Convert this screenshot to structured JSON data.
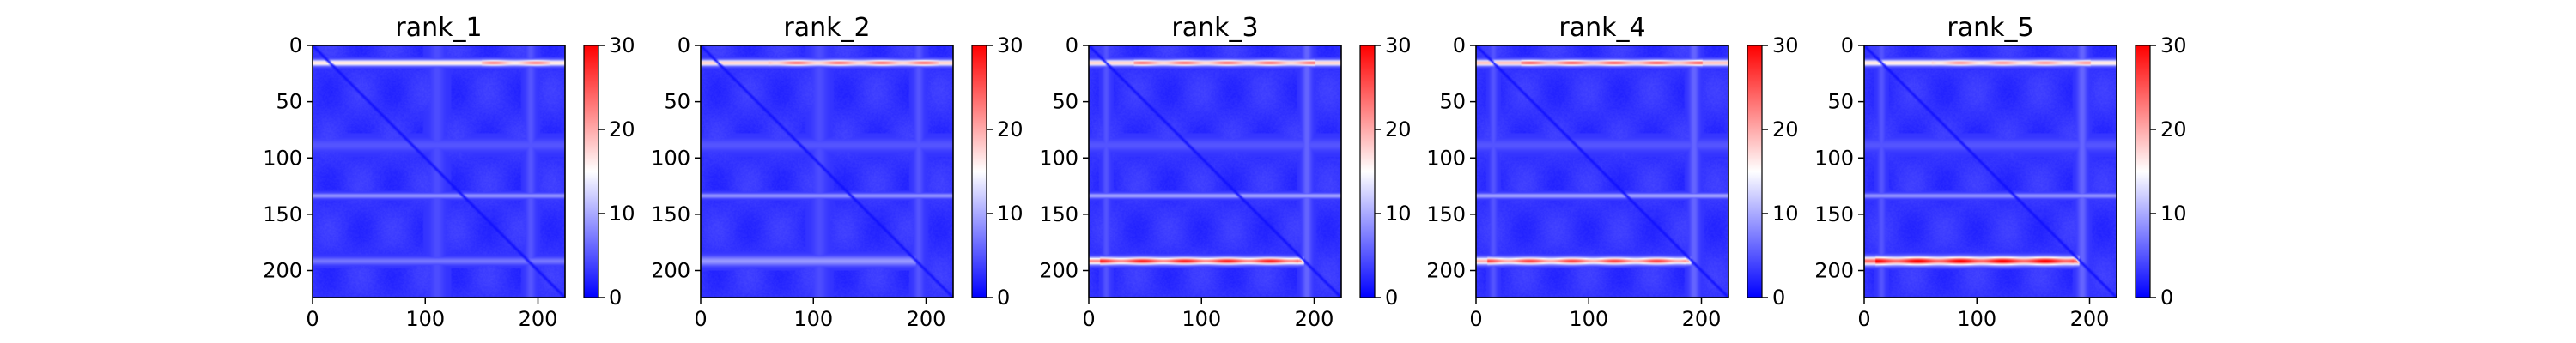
{
  "figure": {
    "background": "#ffffff"
  },
  "colormap": {
    "low": "#0000ff",
    "mid": "#ffffff",
    "high": "#ff0000"
  },
  "chart_data": [
    {
      "type": "heatmap",
      "title": "rank_1",
      "xlim": [
        0,
        224
      ],
      "ylim": [
        224,
        0
      ],
      "x_ticks": [
        0,
        100,
        200
      ],
      "y_ticks": [
        0,
        50,
        100,
        150,
        200
      ],
      "colorbar": {
        "range": [
          0,
          30
        ],
        "ticks": [
          0,
          10,
          20,
          30
        ]
      },
      "grid_size": 224,
      "features": {
        "base_value": 3,
        "diagonal_value": 1,
        "horizontal_bands": [
          {
            "center": 15,
            "width": 2.5,
            "value": 18,
            "x_range": [
              0,
              224
            ],
            "peak_x": [
              150,
              210
            ],
            "peak_value": 23
          },
          {
            "center": 133,
            "width": 2,
            "value": 9,
            "x_range": [
              0,
              224
            ]
          },
          {
            "center": 191,
            "width": 3,
            "value": 7,
            "x_range": [
              0,
              224
            ]
          },
          {
            "center": 88,
            "width": 5,
            "value": 5,
            "x_range": [
              0,
              224
            ]
          }
        ],
        "vertical_bands": [
          {
            "center": 193,
            "width": 4,
            "value": 5
          },
          {
            "center": 110,
            "width": 6,
            "value": 4.5
          }
        ]
      }
    },
    {
      "type": "heatmap",
      "title": "rank_2",
      "xlim": [
        0,
        224
      ],
      "ylim": [
        224,
        0
      ],
      "x_ticks": [
        0,
        100,
        200
      ],
      "y_ticks": [
        0,
        50,
        100,
        150,
        200
      ],
      "colorbar": {
        "range": [
          0,
          30
        ],
        "ticks": [
          0,
          10,
          20,
          30
        ]
      },
      "grid_size": 224,
      "features": {
        "base_value": 3,
        "diagonal_value": 1,
        "horizontal_bands": [
          {
            "center": 15,
            "width": 2.5,
            "value": 19,
            "x_range": [
              0,
              224
            ],
            "peak_x": [
              60,
              210
            ],
            "peak_value": 24
          },
          {
            "center": 133,
            "width": 2,
            "value": 9,
            "x_range": [
              0,
              224
            ]
          },
          {
            "center": 191,
            "width": 4,
            "value": 9,
            "x_range": [
              0,
              190
            ]
          },
          {
            "center": 88,
            "width": 5,
            "value": 5,
            "x_range": [
              0,
              224
            ]
          }
        ],
        "vertical_bands": [
          {
            "center": 193,
            "width": 4,
            "value": 5
          },
          {
            "center": 105,
            "width": 6,
            "value": 4.5
          }
        ]
      }
    },
    {
      "type": "heatmap",
      "title": "rank_3",
      "xlim": [
        0,
        224
      ],
      "ylim": [
        224,
        0
      ],
      "x_ticks": [
        0,
        100,
        200
      ],
      "y_ticks": [
        0,
        50,
        100,
        150,
        200
      ],
      "colorbar": {
        "range": [
          0,
          30
        ],
        "ticks": [
          0,
          10,
          20,
          30
        ]
      },
      "grid_size": 224,
      "features": {
        "base_value": 3,
        "diagonal_value": 1,
        "horizontal_bands": [
          {
            "center": 15,
            "width": 2.5,
            "value": 19,
            "x_range": [
              0,
              224
            ],
            "peak_x": [
              40,
              200
            ],
            "peak_value": 24
          },
          {
            "center": 133,
            "width": 2,
            "value": 10,
            "x_range": [
              0,
              224
            ]
          },
          {
            "center": 191,
            "width": 3,
            "value": 22,
            "x_range": [
              0,
              190
            ],
            "peak_x": [
              10,
              185
            ],
            "peak_value": 28
          },
          {
            "center": 88,
            "width": 5,
            "value": 5,
            "x_range": [
              0,
              224
            ]
          }
        ],
        "vertical_bands": [
          {
            "center": 193,
            "width": 4,
            "value": 6
          },
          {
            "center": 15,
            "width": 3,
            "value": 5
          }
        ]
      }
    },
    {
      "type": "heatmap",
      "title": "rank_4",
      "xlim": [
        0,
        224
      ],
      "ylim": [
        224,
        0
      ],
      "x_ticks": [
        0,
        100,
        200
      ],
      "y_ticks": [
        0,
        50,
        100,
        150,
        200
      ],
      "colorbar": {
        "range": [
          0,
          30
        ],
        "ticks": [
          0,
          10,
          20,
          30
        ]
      },
      "grid_size": 224,
      "features": {
        "base_value": 3,
        "diagonal_value": 1,
        "horizontal_bands": [
          {
            "center": 15,
            "width": 2.5,
            "value": 20,
            "x_range": [
              0,
              224
            ],
            "peak_x": [
              40,
              200
            ],
            "peak_value": 25
          },
          {
            "center": 133,
            "width": 2,
            "value": 10,
            "x_range": [
              0,
              224
            ]
          },
          {
            "center": 191,
            "width": 3,
            "value": 20,
            "x_range": [
              0,
              190
            ],
            "peak_x": [
              10,
              185
            ],
            "peak_value": 26
          },
          {
            "center": 88,
            "width": 5,
            "value": 5,
            "x_range": [
              0,
              224
            ]
          }
        ],
        "vertical_bands": [
          {
            "center": 193,
            "width": 4,
            "value": 6
          },
          {
            "center": 15,
            "width": 3,
            "value": 5
          }
        ]
      }
    },
    {
      "type": "heatmap",
      "title": "rank_5",
      "xlim": [
        0,
        224
      ],
      "ylim": [
        224,
        0
      ],
      "x_ticks": [
        0,
        100,
        200
      ],
      "y_ticks": [
        0,
        50,
        100,
        150,
        200
      ],
      "colorbar": {
        "range": [
          0,
          30
        ],
        "ticks": [
          0,
          10,
          20,
          30
        ]
      },
      "grid_size": 224,
      "features": {
        "base_value": 3,
        "diagonal_value": 1,
        "horizontal_bands": [
          {
            "center": 15,
            "width": 2.5,
            "value": 18,
            "x_range": [
              0,
              224
            ],
            "peak_x": [
              60,
              200
            ],
            "peak_value": 22
          },
          {
            "center": 133,
            "width": 2,
            "value": 9,
            "x_range": [
              0,
              224
            ]
          },
          {
            "center": 191,
            "width": 3.5,
            "value": 24,
            "x_range": [
              0,
              190
            ],
            "peak_x": [
              10,
              185
            ],
            "peak_value": 30
          },
          {
            "center": 88,
            "width": 5,
            "value": 5,
            "x_range": [
              0,
              224
            ]
          }
        ],
        "vertical_bands": [
          {
            "center": 193,
            "width": 4,
            "value": 6
          },
          {
            "center": 15,
            "width": 3,
            "value": 5
          }
        ]
      }
    }
  ]
}
